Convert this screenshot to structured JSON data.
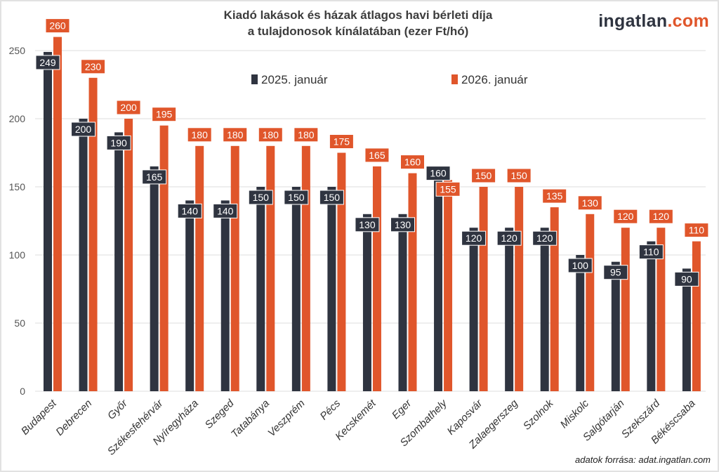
{
  "title_line1": "Kiadó lakások és házak átlagos havi bérleti díja",
  "title_line2": "a tulajdonosok kínálatában (ezer Ft/hó)",
  "logo": {
    "main": "ingatlan",
    "suffix": ".com"
  },
  "source": "adatok forrása: adat.ingatlan.com",
  "chart_data": {
    "type": "bar",
    "title": "Kiadó lakások és házak átlagos havi bérleti díja a tulajdonosok kínálatában (ezer Ft/hó)",
    "categories": [
      "Budapest",
      "Debrecen",
      "Győr",
      "Székesfehérvár",
      "Nyíregyháza",
      "Szeged",
      "Tatabánya",
      "Veszprém",
      "Pécs",
      "Kecskemét",
      "Eger",
      "Szombathely",
      "Kaposvár",
      "Zalaegerszeg",
      "Szolnok",
      "Miskolc",
      "Salgótarján",
      "Szekszárd",
      "Békéscsaba"
    ],
    "series": [
      {
        "name": "2025. január",
        "color": "#2f3440",
        "values": [
          249,
          200,
          190,
          165,
          140,
          140,
          150,
          150,
          150,
          130,
          130,
          160,
          120,
          120,
          120,
          100,
          95,
          110,
          90
        ]
      },
      {
        "name": "2026. január",
        "color": "#e0562b",
        "values": [
          260,
          230,
          200,
          195,
          180,
          180,
          180,
          180,
          175,
          165,
          160,
          155,
          150,
          150,
          135,
          130,
          120,
          120,
          110
        ]
      }
    ],
    "yticks": [
      0,
      50,
      100,
      150,
      200,
      250
    ],
    "ylim": [
      0,
      260
    ],
    "grid": true,
    "legend": "top-center",
    "xlabel": "",
    "ylabel": ""
  }
}
